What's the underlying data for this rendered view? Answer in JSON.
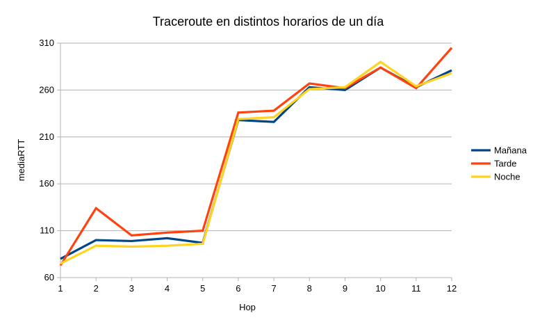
{
  "chart_data": {
    "type": "line",
    "title": "Traceroute en distintos horarios de un día",
    "xlabel": "Hop",
    "ylabel": "mediaRTT",
    "x": [
      1,
      2,
      3,
      4,
      5,
      6,
      7,
      8,
      9,
      10,
      11,
      12
    ],
    "xlim": [
      1,
      12
    ],
    "ylim": [
      60,
      310
    ],
    "yticks": [
      60,
      110,
      160,
      210,
      260,
      310
    ],
    "grid": true,
    "legend_position": "right",
    "series": [
      {
        "name": "Mañana",
        "color": "#004586",
        "values": [
          80,
          100,
          99,
          102,
          97,
          228,
          226,
          263,
          260,
          284,
          263,
          281
        ]
      },
      {
        "name": "Tarde",
        "color": "#ff420e",
        "values": [
          73,
          134,
          105,
          108,
          110,
          236,
          238,
          267,
          262,
          284,
          262,
          305
        ]
      },
      {
        "name": "Noche",
        "color": "#ffd320",
        "values": [
          75,
          94,
          93,
          94,
          96,
          229,
          231,
          261,
          263,
          290,
          264,
          278
        ]
      }
    ]
  }
}
